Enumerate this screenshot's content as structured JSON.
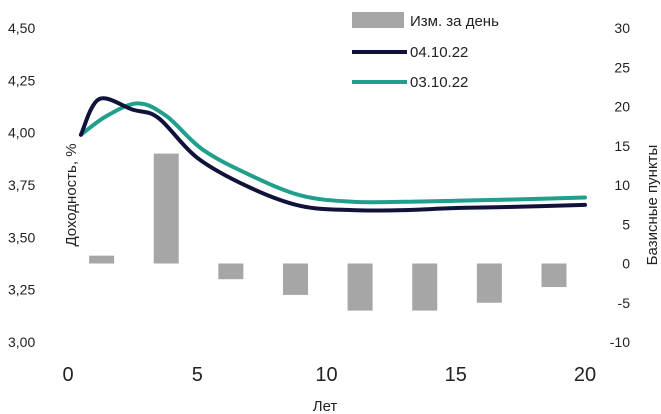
{
  "chart_data": {
    "type": "line",
    "xlabel": "Лет",
    "ylabel": "Доходность, %",
    "y2label": "Базисные пункты",
    "xlim": [
      0,
      20
    ],
    "ylim": [
      3.0,
      4.5
    ],
    "y2lim": [
      -10,
      30
    ],
    "x_ticks": [
      "0",
      "5",
      "10",
      "15",
      "20"
    ],
    "y_ticks": [
      "3,00",
      "3,25",
      "3,50",
      "3,75",
      "4,00",
      "4,25",
      "4,50"
    ],
    "y2_ticks": [
      "-10",
      "-5",
      "0",
      "5",
      "10",
      "15",
      "20",
      "25",
      "30"
    ],
    "grid": false,
    "legend_position": "top-right",
    "series": [
      {
        "name": "Изм. за день",
        "type": "bar",
        "axis": "right",
        "color": "#a6a6a6",
        "x": [
          1.3,
          3.8,
          6.3,
          8.8,
          11.3,
          13.8,
          16.3,
          18.8
        ],
        "values": [
          1,
          14,
          -2,
          -4,
          -6,
          -6,
          -5,
          -3
        ]
      },
      {
        "name": "04.10.22",
        "type": "line",
        "axis": "left",
        "color": "#10123a",
        "x": [
          0.5,
          1.2,
          2.5,
          3.5,
          5,
          7,
          9,
          11,
          13,
          15,
          17,
          20
        ],
        "values": [
          3.99,
          4.16,
          4.11,
          4.07,
          3.88,
          3.74,
          3.65,
          3.63,
          3.63,
          3.64,
          3.645,
          3.655
        ]
      },
      {
        "name": "03.10.22",
        "type": "line",
        "axis": "left",
        "color": "#1f9f8c",
        "x": [
          0.5,
          1.5,
          2.7,
          3.8,
          5.2,
          7,
          9,
          11,
          13,
          15,
          17,
          20
        ],
        "values": [
          3.99,
          4.08,
          4.14,
          4.08,
          3.92,
          3.8,
          3.7,
          3.67,
          3.67,
          3.675,
          3.68,
          3.69
        ]
      }
    ]
  }
}
